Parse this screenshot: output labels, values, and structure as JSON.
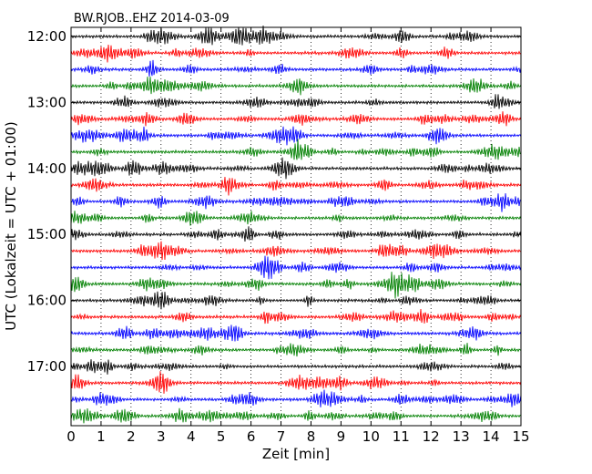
{
  "chart_data": {
    "type": "line",
    "title": "BW.RJOB..EHZ 2014-03-09",
    "xlabel": "Zeit  [min]",
    "ylabel": "UTC (Lokalzeit = UTC + 01:00)",
    "xlim": [
      0,
      15
    ],
    "x_ticks": [
      "0",
      "1",
      "2",
      "3",
      "4",
      "5",
      "6",
      "7",
      "8",
      "9",
      "10",
      "11",
      "12",
      "13",
      "14",
      "15"
    ],
    "y_ticks": [
      "12:00",
      "13:00",
      "14:00",
      "15:00",
      "16:00",
      "17:00"
    ],
    "grid": "vertical dotted lines at each minute",
    "trace_interval_minutes": 15,
    "trace_start_times": [
      "12:00",
      "12:15",
      "12:30",
      "12:45",
      "13:00",
      "13:15",
      "13:30",
      "13:45",
      "14:00",
      "14:15",
      "14:30",
      "14:45",
      "15:00",
      "15:15",
      "15:30",
      "15:45",
      "16:00",
      "16:15",
      "16:30",
      "16:45",
      "17:00",
      "17:15",
      "17:30",
      "17:45"
    ],
    "trace_colors": [
      "#000000",
      "#ff0000",
      "#0000ff",
      "#008000"
    ]
  }
}
